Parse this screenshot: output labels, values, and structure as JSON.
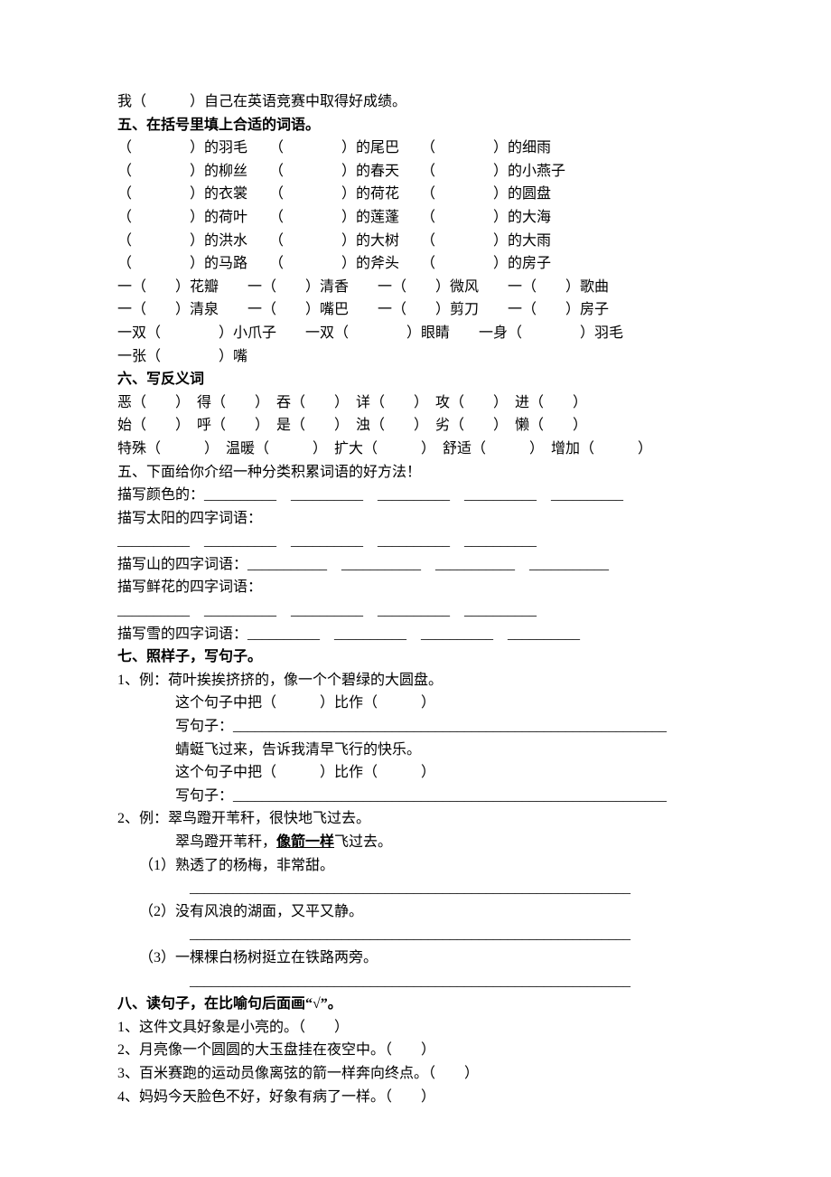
{
  "line_top": "我（　　　）自己在英语竞赛中取得好成绩。",
  "sec5_title": "五、在括号里填上合适的词语。",
  "sec5_rows": [
    "（　　　　）的羽毛　　（　　　　）的尾巴　　（　　　　）的细雨",
    "（　　　　）的柳丝　　（　　　　）的春天　　（　　　　）的小燕子",
    "（　　　　）的衣裳　　（　　　　）的荷花　　（　　　　）的圆盘",
    "（　　　　）的荷叶　　（　　　　）的莲蓬　　（　　　　）的大海",
    "（　　　　）的洪水　　（　　　　）的大树　　（　　　　）的大雨",
    "（　　　　）的马路　　（　　　　）的斧头　　（　　　　）的房子"
  ],
  "sec5_rowA": "一（　　）花瓣　　一（　　）清香　　一（　　）微风　　一（　　）歌曲",
  "sec5_rowB": "一（　　）清泉　　一（　　）嘴巴　　一（　　）剪刀　　一（　　）房子",
  "sec5_rowC": "一双（　　　　）小爪子　　一双（　　　　）眼睛　　一身（　　　　）羽毛",
  "sec5_rowD": "一张（　　　　）嘴",
  "sec6_title": "六、写反义词",
  "sec6_row1": "恶（　　）　得（　　）　吞（　　）　详（　　）　攻（　　）　进（　　）",
  "sec6_row2": "始（　　）　呼（　　）　是（　　）　浊（　　）　劣（　　）　懒（　　）",
  "sec6_row3": "特殊（　　　）　温暖（　　　）　扩大（　　　）　舒适（　　　）　增加（　　　）",
  "sec6_sub": "五、下面给你介绍一种分类积累词语的好方法！",
  "sec6_a": "描写颜色的：__________　__________　__________　__________　__________",
  "sec6_b1": "描写太阳的四字词语：",
  "sec6_b2": "__________　__________　__________　__________　__________",
  "sec6_c": "描写山的四字词语：___________　___________　___________　___________",
  "sec6_d1": "描写鲜花的四字词语：",
  "sec6_d2": "__________　__________　__________　__________　__________",
  "sec6_e": "描写雪的四字词语：__________　__________　__________　__________",
  "sec7_title": "七、照样子，写句子。",
  "sec7_1a": "1、例：荷叶挨挨挤挤的，像一个个碧绿的大圆盘。",
  "sec7_1b": "　　　　这个句子中把（　　　）比作（　　　）",
  "sec7_1c": "　　　　写句子：____________________________________________________________",
  "sec7_1d": "　　　　蜻蜓飞过来，告诉我清早飞行的快乐。",
  "sec7_1e": "　　　　这个句子中把（　　　）比作（　　　）",
  "sec7_1f": "　　　　写句子：____________________________________________________________",
  "sec7_2a": "例：翠鸟蹬开苇秆，很快地飞过去。",
  "sec7_2b_pre": "翠鸟蹬开苇秆，",
  "sec7_2b_u": "像箭一样",
  "sec7_2b_post": "飞过去。",
  "sec7_2_1": "（1）熟透了的杨梅，非常甜。",
  "sec7_2_2": "（2）没有风浪的湖面，又平又静。",
  "sec7_2_3": "（3）一棵棵白杨树挺立在铁路两旁。",
  "blank_line": "_____________________________________________________________",
  "sec8_title": "八、读句子，在比喻句后面画“√”。",
  "sec8_1": "1、这件文具好象是小亮的。（　　）",
  "sec8_2": "2、月亮像一个圆圆的大玉盘挂在夜空中。（　　）",
  "sec8_3": "3、百米赛跑的运动员像离弦的箭一样奔向终点。（　　）",
  "sec8_4": "4、妈妈今天脸色不好，好象有病了一样。（　　）"
}
